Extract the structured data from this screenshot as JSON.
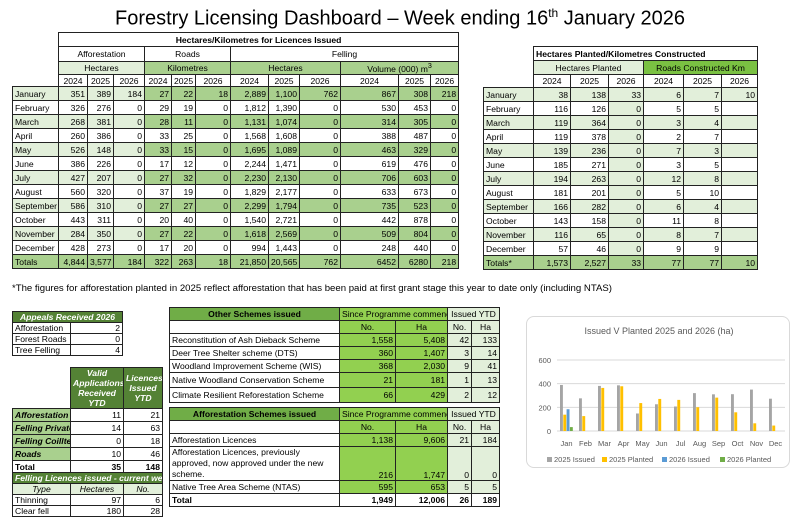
{
  "title": {
    "main": "Forestry Licensing Dashboard – Week ending 16",
    "sup": "th",
    "tail": " January 2026"
  },
  "licences": {
    "heading": "Hectares/Kilometres for Licences Issued",
    "groups": [
      "Afforestation",
      "Roads",
      "Felling"
    ],
    "units": [
      "Hectares",
      "Kilometres",
      "Hectares",
      "Volume (000) m",
      "3"
    ],
    "years": [
      "2024",
      "2025",
      "2026"
    ],
    "rows": [
      [
        "January",
        "351",
        "389",
        "184",
        "27",
        "22",
        "18",
        "2,889",
        "1,100",
        "762",
        "867",
        "308",
        "218"
      ],
      [
        "February",
        "326",
        "276",
        "0",
        "29",
        "19",
        "0",
        "1,812",
        "1,390",
        "0",
        "530",
        "453",
        "0"
      ],
      [
        "March",
        "268",
        "381",
        "0",
        "28",
        "11",
        "0",
        "1,131",
        "1,074",
        "0",
        "314",
        "305",
        "0"
      ],
      [
        "April",
        "260",
        "386",
        "0",
        "33",
        "25",
        "0",
        "1,568",
        "1,608",
        "0",
        "388",
        "487",
        "0"
      ],
      [
        "May",
        "526",
        "148",
        "0",
        "33",
        "15",
        "0",
        "1,695",
        "1,089",
        "0",
        "463",
        "329",
        "0"
      ],
      [
        "June",
        "386",
        "226",
        "0",
        "17",
        "12",
        "0",
        "2,244",
        "1,471",
        "0",
        "619",
        "476",
        "0"
      ],
      [
        "July",
        "427",
        "207",
        "0",
        "27",
        "32",
        "0",
        "2,230",
        "2,130",
        "0",
        "706",
        "603",
        "0"
      ],
      [
        "August",
        "560",
        "320",
        "0",
        "37",
        "19",
        "0",
        "1,829",
        "2,177",
        "0",
        "633",
        "673",
        "0"
      ],
      [
        "September",
        "586",
        "310",
        "0",
        "27",
        "27",
        "0",
        "2,299",
        "1,794",
        "0",
        "735",
        "523",
        "0"
      ],
      [
        "October",
        "443",
        "311",
        "0",
        "20",
        "40",
        "0",
        "1,540",
        "2,721",
        "0",
        "442",
        "878",
        "0"
      ],
      [
        "November",
        "284",
        "350",
        "0",
        "27",
        "22",
        "0",
        "1,618",
        "2,569",
        "0",
        "509",
        "804",
        "0"
      ],
      [
        "December",
        "428",
        "273",
        "0",
        "17",
        "20",
        "0",
        "994",
        "1,443",
        "0",
        "248",
        "440",
        "0"
      ],
      [
        "Totals",
        "4,844",
        "3,577",
        "184",
        "322",
        "263",
        "18",
        "21,850",
        "20,565",
        "762",
        "6452",
        "6280",
        "218"
      ]
    ]
  },
  "planted": {
    "heading": "Hectares Planted/Kilometres Constructed",
    "units": [
      "Hectares Planted",
      "Roads Constructed Km"
    ],
    "years": [
      "2024",
      "2025",
      "2026"
    ],
    "rows": [
      [
        "January",
        "38",
        "138",
        "33",
        "6",
        "7",
        "10"
      ],
      [
        "February",
        "116",
        "126",
        "0",
        "5",
        "5",
        ""
      ],
      [
        "March",
        "119",
        "364",
        "0",
        "3",
        "4",
        ""
      ],
      [
        "April",
        "119",
        "378",
        "0",
        "2",
        "7",
        ""
      ],
      [
        "May",
        "139",
        "236",
        "0",
        "7",
        "3",
        ""
      ],
      [
        "June",
        "185",
        "271",
        "0",
        "3",
        "5",
        ""
      ],
      [
        "July",
        "194",
        "263",
        "0",
        "12",
        "8",
        ""
      ],
      [
        "August",
        "181",
        "201",
        "0",
        "5",
        "10",
        ""
      ],
      [
        "September",
        "166",
        "282",
        "0",
        "6",
        "4",
        ""
      ],
      [
        "October",
        "143",
        "158",
        "0",
        "11",
        "8",
        ""
      ],
      [
        "November",
        "116",
        "65",
        "0",
        "8",
        "7",
        ""
      ],
      [
        "December",
        "57",
        "46",
        "0",
        "9",
        "9",
        ""
      ],
      [
        "Totals*",
        "1,573",
        "2,527",
        "33",
        "77",
        "77",
        "10"
      ]
    ]
  },
  "note": "*The figures for afforestation planted in 2025 reflect afforestation that has been paid at first grant stage this year to date only (including NTAS)",
  "appeals": {
    "heading": "Appeals Received 2026",
    "rows": [
      [
        "Afforestation",
        "2"
      ],
      [
        "Forest Roads",
        "0"
      ],
      [
        "Tree Felling",
        "4"
      ]
    ]
  },
  "applications": {
    "headers": [
      "Valid Applications Received YTD",
      "Licences Issued YTD"
    ],
    "rows": [
      [
        "Afforestation",
        "11",
        "21"
      ],
      [
        "Felling Private",
        "14",
        "63"
      ],
      [
        "Felling Coillte",
        "0",
        "18"
      ],
      [
        "Roads",
        "10",
        "46"
      ],
      [
        "Total",
        "35",
        "148"
      ]
    ]
  },
  "felling_week": {
    "heading": "Felling Licences issued - current week",
    "headers": [
      "Type",
      "Hectares",
      "No."
    ],
    "rows": [
      [
        "Thinning",
        "97",
        "6"
      ],
      [
        "Clear fell",
        "180",
        "28"
      ]
    ]
  },
  "other_schemes": {
    "heading": "Other Schemes issued",
    "since": "Since Programme commenced",
    "ytd": "Issued YTD",
    "sub": [
      "No.",
      "Ha",
      "No.",
      "Ha"
    ],
    "rows": [
      [
        "Reconstitution of Ash Dieback Scheme",
        "1,558",
        "5,408",
        "42",
        "133"
      ],
      [
        "Deer Tree Shelter scheme (DTS)",
        "360",
        "1,407",
        "3",
        "14"
      ],
      [
        "Woodland Improvement Scheme (WIS)",
        "368",
        "2,030",
        "9",
        "41"
      ],
      [
        "Native Woodland Conservation Scheme",
        "21",
        "181",
        "1",
        "13"
      ],
      [
        "Climate Resilient Reforestation Scheme",
        "66",
        "429",
        "2",
        "12"
      ]
    ]
  },
  "aff_schemes": {
    "heading": "Afforestation Schemes issued",
    "since": "Since Programme commenced",
    "ytd": "Issued YTD",
    "sub": [
      "No.",
      "Ha",
      "No.",
      "Ha"
    ],
    "rows": [
      [
        "Afforestation Licences",
        "1,138",
        "9,606",
        "21",
        "184"
      ],
      [
        "Afforestation Licences, previously approved, now approved under the new scheme.",
        "216",
        "1,747",
        "0",
        "0"
      ],
      [
        "Native Tree Area Scheme (NTAS)",
        "595",
        "653",
        "5",
        "5"
      ],
      [
        "Total",
        "1,949",
        "12,006",
        "26",
        "189"
      ]
    ]
  },
  "chart_data": {
    "type": "bar",
    "title": "Issued V Planted 2025 and 2026 (ha)",
    "categories": [
      "Jan",
      "Feb",
      "Mar",
      "Apr",
      "May",
      "Jun",
      "Jul",
      "Aug",
      "Sep",
      "Oct",
      "Nov",
      "Dec"
    ],
    "ylim": [
      0,
      600
    ],
    "yticks": [
      "0",
      "200",
      "400",
      "600"
    ],
    "grid": true,
    "legend": "bottom",
    "series": [
      {
        "name": "2025 Issued",
        "color": "#a5a5a5",
        "values": [
          389,
          276,
          381,
          386,
          148,
          226,
          207,
          320,
          310,
          311,
          350,
          273
        ]
      },
      {
        "name": "2025 Planted",
        "color": "#ffc000",
        "values": [
          138,
          126,
          364,
          378,
          236,
          271,
          263,
          201,
          282,
          158,
          65,
          46
        ]
      },
      {
        "name": "2026 Issued",
        "color": "#5b9bd5",
        "values": [
          184,
          null,
          null,
          null,
          null,
          null,
          null,
          null,
          null,
          null,
          null,
          null
        ]
      },
      {
        "name": "2026 Planted",
        "color": "#70ad47",
        "values": [
          33,
          null,
          null,
          null,
          null,
          null,
          null,
          null,
          null,
          null,
          null,
          null
        ]
      }
    ]
  }
}
